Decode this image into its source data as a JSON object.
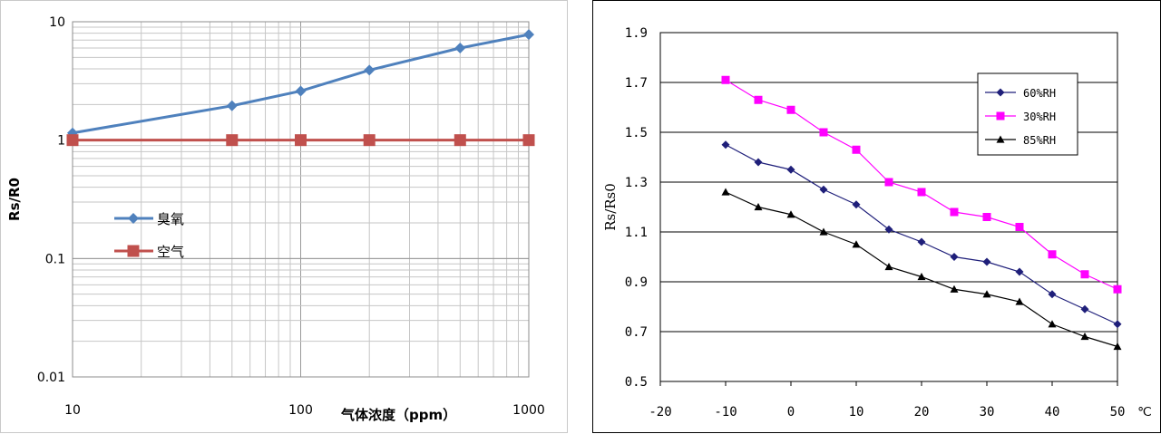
{
  "chart_data": [
    {
      "type": "line",
      "scale": "log-log",
      "title": "",
      "xlabel": "气体浓度（ppm）",
      "ylabel": "Rs/R0",
      "xlim": [
        10,
        1000
      ],
      "ylim": [
        0.01,
        10
      ],
      "x_ticks": [
        "10",
        "100",
        "1000"
      ],
      "y_ticks": [
        "0.01",
        "0.1",
        "1",
        "10"
      ],
      "grid": true,
      "legend_position": "center-left",
      "series": [
        {
          "name": "臭氧",
          "color": "#4f81bd",
          "marker": "diamond",
          "x": [
            10,
            50,
            100,
            200,
            500,
            1000
          ],
          "y": [
            1.15,
            1.95,
            2.6,
            3.9,
            6.0,
            7.8
          ]
        },
        {
          "name": "空气",
          "color": "#c0504d",
          "marker": "square",
          "x": [
            10,
            50,
            100,
            200,
            500,
            1000
          ],
          "y": [
            1,
            1,
            1,
            1,
            1,
            1
          ]
        }
      ]
    },
    {
      "type": "line",
      "title": "",
      "xlabel": "",
      "x_unit": "℃",
      "ylabel": "Rs/Rs0",
      "xlim": [
        -20,
        50
      ],
      "ylim": [
        0.5,
        1.9
      ],
      "x_ticks": [
        "-20",
        "-10",
        "0",
        "10",
        "20",
        "30",
        "40",
        "50"
      ],
      "y_ticks": [
        "0.5",
        "0.7",
        "0.9",
        "1.1",
        "1.3",
        "1.5",
        "1.7",
        "1.9"
      ],
      "grid": true,
      "legend_position": "top-right",
      "series": [
        {
          "name": "60%RH",
          "color": "#1f1f7a",
          "marker": "diamond",
          "x": [
            -10,
            -5,
            0,
            5,
            10,
            15,
            20,
            25,
            30,
            35,
            40,
            45,
            50
          ],
          "y": [
            1.45,
            1.38,
            1.35,
            1.27,
            1.21,
            1.11,
            1.06,
            1.0,
            0.98,
            0.94,
            0.85,
            0.79,
            0.73
          ]
        },
        {
          "name": "30%RH",
          "color": "#ff00ff",
          "marker": "square",
          "x": [
            -10,
            -5,
            0,
            5,
            10,
            15,
            20,
            25,
            30,
            35,
            40,
            45,
            50
          ],
          "y": [
            1.71,
            1.63,
            1.59,
            1.5,
            1.43,
            1.3,
            1.26,
            1.18,
            1.16,
            1.12,
            1.01,
            0.93,
            0.87
          ]
        },
        {
          "name": "85%RH",
          "color": "#000000",
          "marker": "triangle",
          "x": [
            -10,
            -5,
            0,
            5,
            10,
            15,
            20,
            25,
            30,
            35,
            40,
            45,
            50
          ],
          "y": [
            1.26,
            1.2,
            1.17,
            1.1,
            1.05,
            0.96,
            0.92,
            0.87,
            0.85,
            0.82,
            0.73,
            0.68,
            0.64
          ]
        }
      ]
    }
  ]
}
